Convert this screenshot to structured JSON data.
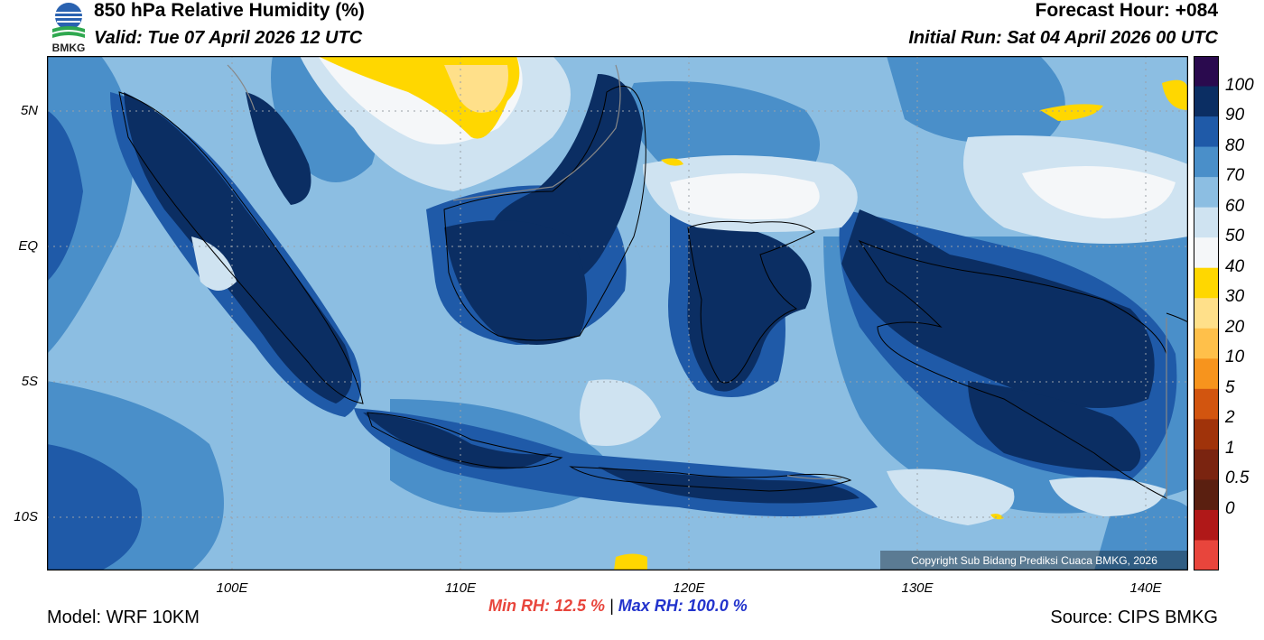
{
  "header": {
    "title": "850 hPa Relative Humidity (%)",
    "valid": "Valid: Tue 07 April 2026 12 UTC",
    "forecast_hour": "Forecast Hour: +084",
    "initial_run": "Initial Run: Sat 04 April 2026 00 UTC",
    "logo_text": "BMKG"
  },
  "axes": {
    "latitude_labels": [
      "5N",
      "EQ",
      "5S",
      "10S"
    ],
    "longitude_labels": [
      "100E",
      "110E",
      "120E",
      "130E",
      "140E"
    ]
  },
  "colorbar": {
    "labels": [
      "100",
      "90",
      "80",
      "70",
      "60",
      "50",
      "40",
      "30",
      "20",
      "10",
      "5",
      "2",
      "1",
      "0.5",
      "0"
    ],
    "colors": [
      "#2a0a4e",
      "#0b2e63",
      "#1f5aa8",
      "#4a8fc9",
      "#8cbee2",
      "#cfe3f1",
      "#f5f7f9",
      "#ffd700",
      "#ffe08a",
      "#ffc04a",
      "#f7941d",
      "#d2550f",
      "#a0330a",
      "#7a2410",
      "#5a1f10",
      "#b01818",
      "#e8453c"
    ]
  },
  "stats": {
    "min_rh": "Min RH:  12.5 %",
    "separator": " | ",
    "max_rh": "Max RH: 100.0 %"
  },
  "footer": {
    "model": "Model: WRF 10KM",
    "source": "Source: CIPS BMKG",
    "copyright": "Copyright Sub Bidang Prediksi Cuaca BMKG, 2026"
  }
}
